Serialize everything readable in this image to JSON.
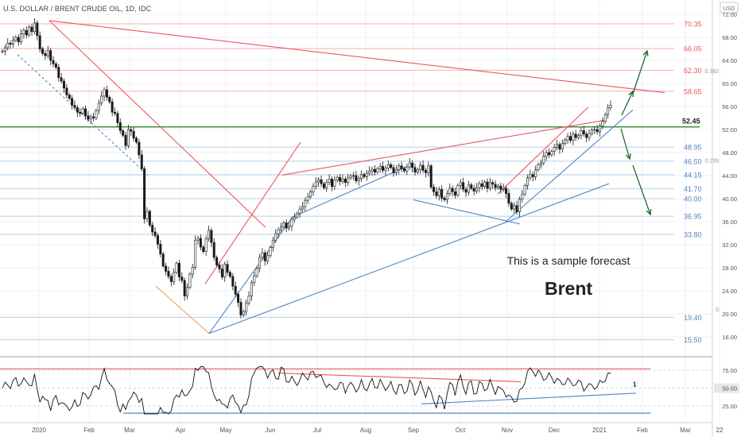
{
  "chart_data": {
    "type": "candlestick",
    "title": "U.S. DOLLAR / BRENT CRUDE OIL, 1D, IDC",
    "currency_label": "USD",
    "annotation_line1": "This is a sample forecast",
    "annotation_line2": "Brent",
    "current_price_label": "52.45",
    "colors": {
      "up": "#1a1a1a",
      "down": "#1a1a1a",
      "resistance": "#e8585f",
      "support": "#4f84c4",
      "key_level": "#1c7b1c",
      "arrow": "#1f6b2b",
      "fib_orange": "#f5a04a",
      "osc_line": "#111111"
    },
    "price_axis": {
      "ticks": [
        "72.00",
        "68.00",
        "64.00",
        "60.00",
        "56.00",
        "52.00",
        "48.00",
        "44.00",
        "40.00",
        "36.00",
        "32.00",
        "28.00",
        "24.00",
        "20.00",
        "16.00"
      ]
    },
    "time_axis": {
      "labels": [
        "2020",
        "Feb",
        "Mar",
        "Apr",
        "May",
        "Jun",
        "Jul",
        "Aug",
        "Sep",
        "Oct",
        "Nov",
        "Dec",
        "2021",
        "Feb",
        "Mar",
        "22"
      ]
    },
    "red_levels": [
      "70.35",
      "66.05",
      "62.30",
      "58.65"
    ],
    "blue_levels": [
      "48.95",
      "46.50",
      "44.15",
      "41.70",
      "40.00",
      "36.95",
      "33.80",
      "19.40",
      "15.50"
    ],
    "fib_labels": [
      "0.382",
      "0.236",
      "0"
    ],
    "oscillator": {
      "ticks": [
        "75.00",
        "50.00",
        "25.00"
      ],
      "marker": "1"
    }
  }
}
